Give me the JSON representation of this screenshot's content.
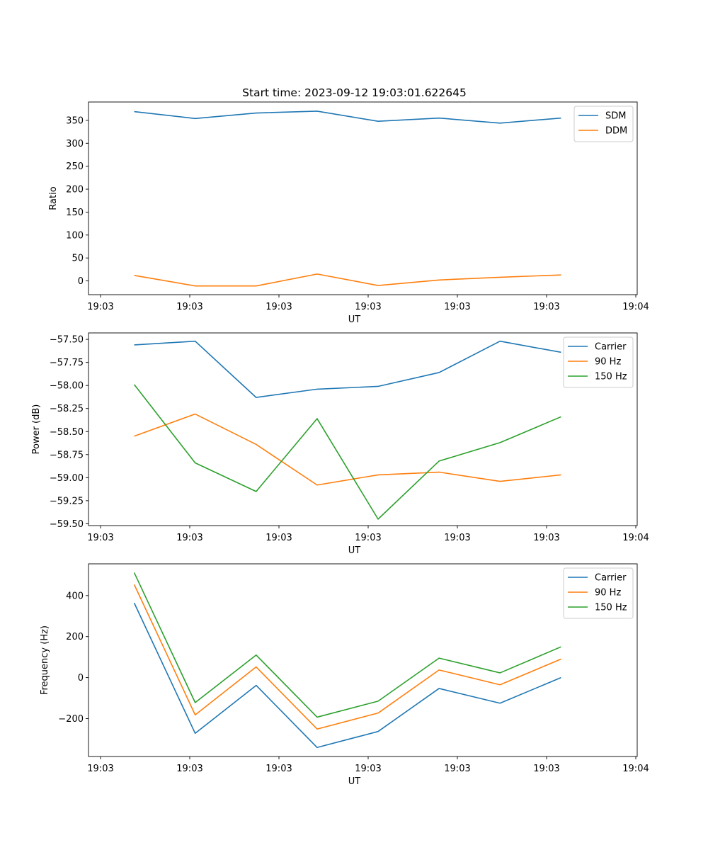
{
  "chart_data": [
    {
      "type": "line",
      "title": "Start time: 2023-09-12 19:03:01.622645",
      "xlabel": "UT",
      "ylabel": "Ratio",
      "x_ticks": [
        "19:03",
        "19:03",
        "19:03",
        "19:03",
        "19:03",
        "19:03",
        "19:04"
      ],
      "x": [
        1,
        2,
        3,
        4,
        5,
        6,
        7,
        8
      ],
      "xlim": [
        0.25,
        9.25
      ],
      "ylim": [
        -30,
        390
      ],
      "y_ticks": [
        0,
        50,
        100,
        150,
        200,
        250,
        300,
        350
      ],
      "legend": "top-right",
      "grid": false,
      "series": [
        {
          "name": "SDM",
          "color": "#1f77b4",
          "values": [
            369,
            354,
            366,
            370,
            348,
            355,
            344,
            355
          ]
        },
        {
          "name": "DDM",
          "color": "#ff7f0e",
          "values": [
            12,
            -11,
            -11,
            15,
            -10,
            2,
            8,
            13
          ]
        }
      ]
    },
    {
      "type": "line",
      "title": "",
      "xlabel": "UT",
      "ylabel": "Power (dB)",
      "x_ticks": [
        "19:03",
        "19:03",
        "19:03",
        "19:03",
        "19:03",
        "19:03",
        "19:04"
      ],
      "x": [
        1,
        2,
        3,
        4,
        5,
        6,
        7,
        8
      ],
      "xlim": [
        0.25,
        9.25
      ],
      "ylim": [
        -59.52,
        -57.43
      ],
      "y_ticks": [
        -59.5,
        -59.25,
        -59.0,
        -58.75,
        -58.5,
        -58.25,
        -58.0,
        -57.75,
        -57.5
      ],
      "y_tick_labels": [
        "−59.50",
        "−59.25",
        "−59.00",
        "−58.75",
        "−58.50",
        "−58.25",
        "−58.00",
        "−57.75",
        "−57.50"
      ],
      "legend": "top-right",
      "grid": false,
      "series": [
        {
          "name": "Carrier",
          "color": "#1f77b4",
          "values": [
            -57.56,
            -57.52,
            -58.13,
            -58.04,
            -58.01,
            -57.86,
            -57.52,
            -57.64
          ]
        },
        {
          "name": "90 Hz",
          "color": "#ff7f0e",
          "values": [
            -58.55,
            -58.31,
            -58.64,
            -59.08,
            -58.97,
            -58.94,
            -59.04,
            -58.97
          ]
        },
        {
          "name": "150 Hz",
          "color": "#2ca02c",
          "values": [
            -57.99,
            -58.84,
            -59.15,
            -58.36,
            -59.45,
            -58.82,
            -58.62,
            -58.34
          ]
        }
      ]
    },
    {
      "type": "line",
      "title": "",
      "xlabel": "UT",
      "ylabel": "Frequency (Hz)",
      "x_ticks": [
        "19:03",
        "19:03",
        "19:03",
        "19:03",
        "19:03",
        "19:03",
        "19:04"
      ],
      "x": [
        1,
        2,
        3,
        4,
        5,
        6,
        7,
        8
      ],
      "xlim": [
        0.25,
        9.25
      ],
      "ylim": [
        -385,
        555
      ],
      "y_ticks": [
        -200,
        0,
        200,
        400
      ],
      "y_tick_labels": [
        "−200",
        "0",
        "200",
        "400"
      ],
      "legend": "top-right",
      "grid": false,
      "series": [
        {
          "name": "Carrier",
          "color": "#1f77b4",
          "values": [
            364,
            -272,
            -38,
            -341,
            -263,
            -53,
            -125,
            0
          ]
        },
        {
          "name": "90 Hz",
          "color": "#ff7f0e",
          "values": [
            454,
            -182,
            52,
            -251,
            -173,
            37,
            -35,
            90
          ]
        },
        {
          "name": "150 Hz",
          "color": "#2ca02c",
          "values": [
            512,
            -122,
            110,
            -193,
            -115,
            95,
            23,
            150
          ]
        }
      ]
    }
  ]
}
